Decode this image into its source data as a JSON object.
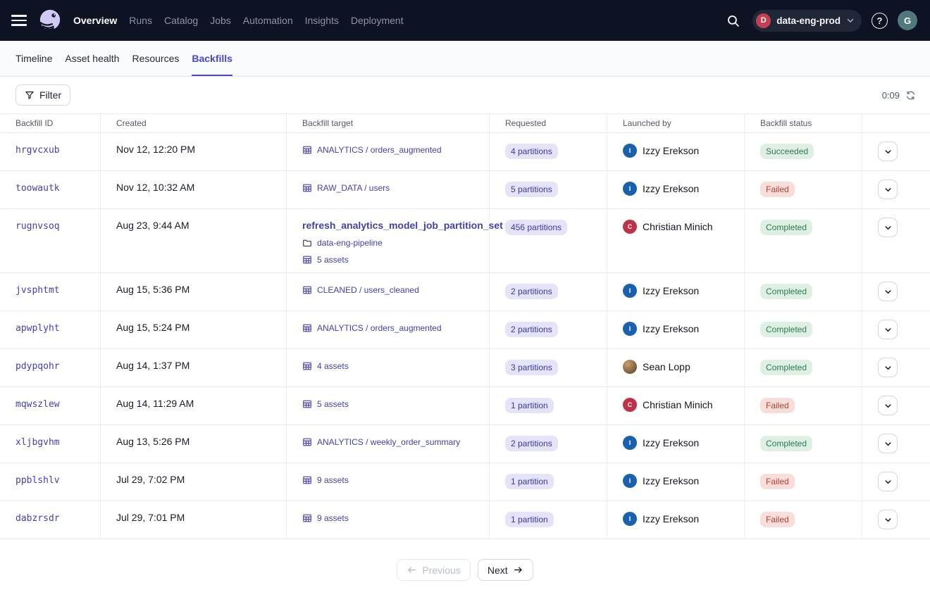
{
  "topnav": {
    "items": [
      {
        "label": "Overview",
        "active": true
      },
      {
        "label": "Runs",
        "active": false
      },
      {
        "label": "Catalog",
        "active": false
      },
      {
        "label": "Jobs",
        "active": false
      },
      {
        "label": "Automation",
        "active": false
      },
      {
        "label": "Insights",
        "active": false
      },
      {
        "label": "Deployment",
        "active": false
      }
    ],
    "deployment": {
      "initial": "D",
      "label": "data-eng-prod"
    },
    "help_label": "?",
    "user_initial": "G"
  },
  "tabs": [
    {
      "label": "Timeline",
      "active": false
    },
    {
      "label": "Asset health",
      "active": false
    },
    {
      "label": "Resources",
      "active": false
    },
    {
      "label": "Backfills",
      "active": true
    }
  ],
  "toolbar": {
    "filter_label": "Filter",
    "refresh_countdown": "0:09"
  },
  "table": {
    "columns": [
      "Backfill ID",
      "Created",
      "Backfill target",
      "Requested",
      "Launched by",
      "Backfill status"
    ],
    "rows": [
      {
        "id": "hrgvcxub",
        "created": "Nov 12, 12:20 PM",
        "target": [
          {
            "icon": "asset-table",
            "text": "ANALYTICS / orders_augmented",
            "bold": false
          }
        ],
        "requested": "4 partitions",
        "launched_by": {
          "name": "Izzy Erekson",
          "avatar_type": "initial",
          "avatar_initial": "I",
          "avatar_color": "#1961ad"
        },
        "status": {
          "label": "Succeeded",
          "kind": "success"
        }
      },
      {
        "id": "toowautk",
        "created": "Nov 12, 10:32 AM",
        "target": [
          {
            "icon": "asset-table",
            "text": "RAW_DATA / users",
            "bold": false
          }
        ],
        "requested": "5 partitions",
        "launched_by": {
          "name": "Izzy Erekson",
          "avatar_type": "initial",
          "avatar_initial": "I",
          "avatar_color": "#1961ad"
        },
        "status": {
          "label": "Failed",
          "kind": "fail"
        }
      },
      {
        "id": "rugnvsoq",
        "created": "Aug 23, 9:44 AM",
        "target": [
          {
            "icon": null,
            "text": "refresh_analytics_model_job_partition_set",
            "bold": true
          },
          {
            "icon": "folder",
            "text": "data-eng-pipeline",
            "bold": false
          },
          {
            "icon": "asset-table",
            "text": "5 assets",
            "bold": false
          }
        ],
        "requested": "456 partitions",
        "launched_by": {
          "name": "Christian Minich",
          "avatar_type": "initial",
          "avatar_initial": "C",
          "avatar_color": "#bd3246"
        },
        "status": {
          "label": "Completed",
          "kind": "success"
        }
      },
      {
        "id": "jvsphtmt",
        "created": "Aug 15, 5:36 PM",
        "target": [
          {
            "icon": "asset-table",
            "text": "CLEANED / users_cleaned",
            "bold": false
          }
        ],
        "requested": "2 partitions",
        "launched_by": {
          "name": "Izzy Erekson",
          "avatar_type": "initial",
          "avatar_initial": "I",
          "avatar_color": "#1961ad"
        },
        "status": {
          "label": "Completed",
          "kind": "success"
        }
      },
      {
        "id": "apwplyht",
        "created": "Aug 15, 5:24 PM",
        "target": [
          {
            "icon": "asset-table",
            "text": "ANALYTICS / orders_augmented",
            "bold": false
          }
        ],
        "requested": "2 partitions",
        "launched_by": {
          "name": "Izzy Erekson",
          "avatar_type": "initial",
          "avatar_initial": "I",
          "avatar_color": "#1961ad"
        },
        "status": {
          "label": "Completed",
          "kind": "success"
        }
      },
      {
        "id": "pdypqohr",
        "created": "Aug 14, 1:37 PM",
        "target": [
          {
            "icon": "asset-table",
            "text": "4 assets",
            "bold": false
          }
        ],
        "requested": "3 partitions",
        "launched_by": {
          "name": "Sean Lopp",
          "avatar_type": "photo",
          "avatar_initial": "",
          "avatar_color": "#8a6a44"
        },
        "status": {
          "label": "Completed",
          "kind": "success"
        }
      },
      {
        "id": "mqwszlew",
        "created": "Aug 14, 11:29 AM",
        "target": [
          {
            "icon": "asset-table",
            "text": "5 assets",
            "bold": false
          }
        ],
        "requested": "1 partition",
        "launched_by": {
          "name": "Christian Minich",
          "avatar_type": "initial",
          "avatar_initial": "C",
          "avatar_color": "#bd3246"
        },
        "status": {
          "label": "Failed",
          "kind": "fail"
        }
      },
      {
        "id": "xljbgvhm",
        "created": "Aug 13, 5:26 PM",
        "target": [
          {
            "icon": "asset-table",
            "text": "ANALYTICS / weekly_order_summary",
            "bold": false
          }
        ],
        "requested": "2 partitions",
        "launched_by": {
          "name": "Izzy Erekson",
          "avatar_type": "initial",
          "avatar_initial": "I",
          "avatar_color": "#1961ad"
        },
        "status": {
          "label": "Completed",
          "kind": "success"
        }
      },
      {
        "id": "ppblshlv",
        "created": "Jul 29, 7:02 PM",
        "target": [
          {
            "icon": "asset-table",
            "text": "9 assets",
            "bold": false
          }
        ],
        "requested": "1 partition",
        "launched_by": {
          "name": "Izzy Erekson",
          "avatar_type": "initial",
          "avatar_initial": "I",
          "avatar_color": "#1961ad"
        },
        "status": {
          "label": "Failed",
          "kind": "fail"
        }
      },
      {
        "id": "dabzrsdr",
        "created": "Jul 29, 7:01 PM",
        "target": [
          {
            "icon": "asset-table",
            "text": "9 assets",
            "bold": false
          }
        ],
        "requested": "1 partition",
        "launched_by": {
          "name": "Izzy Erekson",
          "avatar_type": "initial",
          "avatar_initial": "I",
          "avatar_color": "#1961ad"
        },
        "status": {
          "label": "Failed",
          "kind": "fail"
        }
      }
    ]
  },
  "pagination": {
    "previous_label": "Previous",
    "next_label": "Next"
  },
  "colors": {
    "accent": "#4644d9",
    "link": "#423eb8",
    "nav_bg": "#0d1322",
    "badge_bg": "#e5e3fa",
    "badge_text": "#3b38ad",
    "success_bg": "#ddf0e3",
    "success_text": "#2e7d4f",
    "fail_bg": "#f9ddd8",
    "fail_text": "#ae4237"
  }
}
